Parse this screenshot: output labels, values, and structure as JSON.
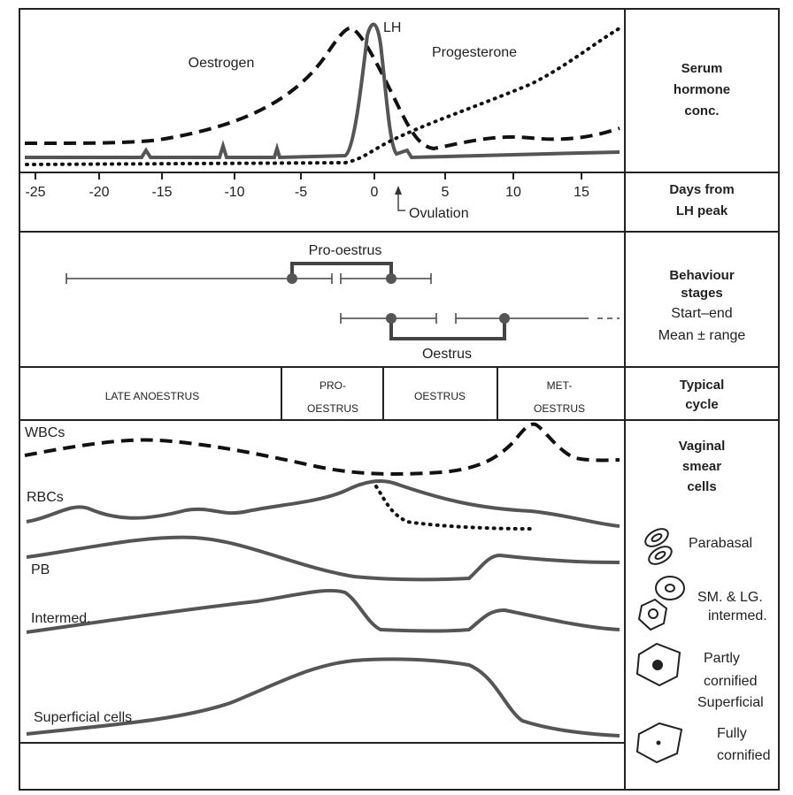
{
  "hormone_panel": {
    "labels": {
      "oestrogen": "Oestrogen",
      "lh": "LH",
      "progesterone": "Progesterone"
    },
    "row_label": [
      "Serum",
      "hormone",
      "conc."
    ]
  },
  "days_axis": {
    "ticks": [
      "-25",
      "-20",
      "-15",
      "-10",
      "-5",
      "0",
      "5",
      "10",
      "15"
    ],
    "annotation": "Ovulation",
    "row_label": [
      "Days from",
      "LH peak"
    ]
  },
  "behaviour": {
    "pro_oestrus": "Pro-oestrus",
    "oestrus": "Oestrus",
    "row_label": {
      "title": [
        "Behaviour",
        "stages"
      ],
      "lines": [
        "Start–end",
        "Mean ± range"
      ]
    }
  },
  "typical_cycle": {
    "stages": [
      [
        "LATE ANOESTRUS"
      ],
      [
        "PRO-",
        "OESTRUS"
      ],
      [
        "OESTRUS"
      ],
      [
        "MET-",
        "OESTRUS"
      ]
    ],
    "row_label": [
      "Typical",
      "cycle"
    ]
  },
  "vaginal_smear": {
    "curves": [
      "WBCs",
      "RBCs",
      "PB",
      "Intermed.",
      "Superficial cells"
    ],
    "row_label": [
      "Vaginal",
      "smear",
      "cells"
    ],
    "legend": [
      [
        "Parabasal"
      ],
      [
        "SM. & LG.",
        "intermed."
      ],
      [
        "Partly",
        "cornified",
        "Superficial"
      ],
      [
        "Fully",
        "cornified"
      ]
    ]
  }
}
